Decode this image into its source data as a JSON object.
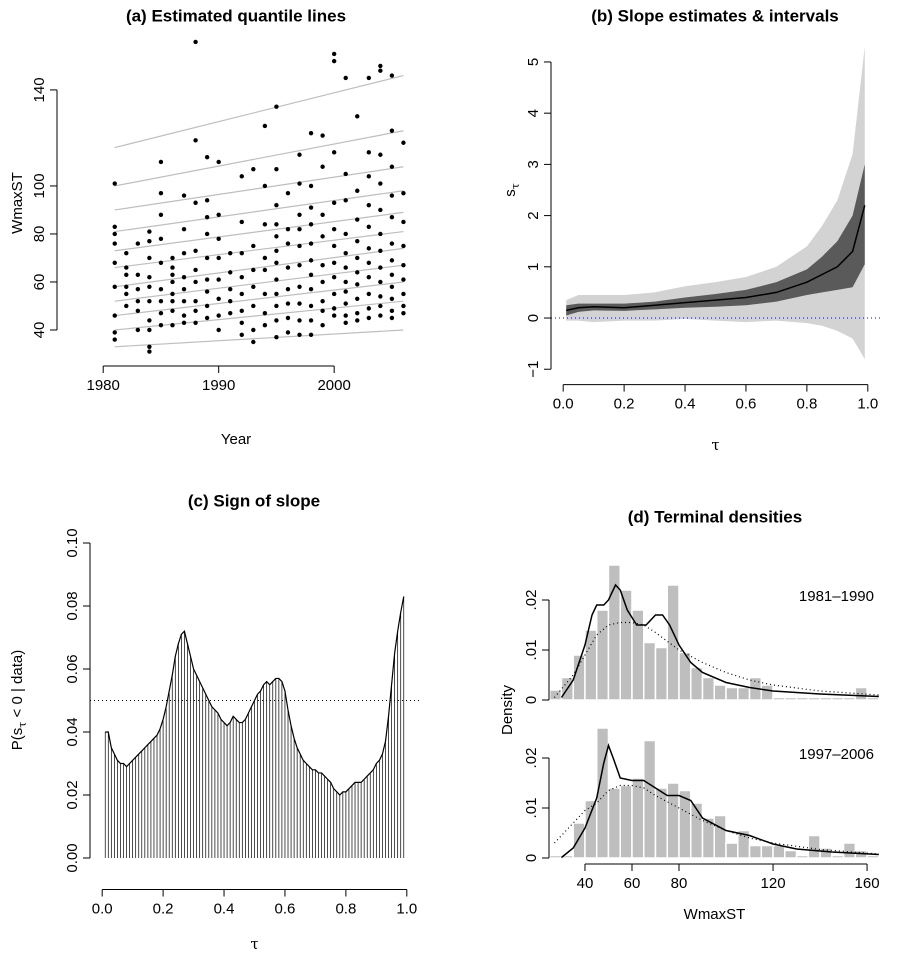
{
  "chart_data": [
    {
      "type": "scatter",
      "title": "(a) Estimated quantile lines",
      "x_label": "Year",
      "y_label": "WmaxST",
      "xlim": [
        1976,
        2007
      ],
      "ylim": [
        25,
        160.8
      ],
      "xticks": [
        1980,
        1990,
        2000
      ],
      "yticks": [
        40,
        60,
        80,
        100,
        140
      ],
      "color": "#000000",
      "groups": [
        {
          "x": 1981,
          "values": [
            36,
            39,
            46,
            58,
            68,
            76,
            80,
            83,
            101
          ]
        },
        {
          "x": 1982,
          "values": [
            50,
            55,
            58,
            63,
            66,
            72
          ]
        },
        {
          "x": 1983,
          "values": [
            40,
            48,
            52,
            57,
            63,
            76
          ]
        },
        {
          "x": 1984,
          "values": [
            31,
            33,
            40,
            44,
            52,
            58,
            62,
            70,
            77,
            81
          ]
        },
        {
          "x": 1985,
          "values": [
            42,
            47,
            52,
            57,
            68,
            78,
            88,
            97,
            110
          ]
        },
        {
          "x": 1986,
          "values": [
            42,
            48,
            52,
            55,
            60,
            63,
            66,
            70
          ]
        },
        {
          "x": 1987,
          "values": [
            43,
            46,
            52,
            57,
            62,
            72,
            82,
            96
          ]
        },
        {
          "x": 1988,
          "values": [
            43,
            48,
            52,
            60,
            65,
            73,
            93,
            119,
            160
          ]
        },
        {
          "x": 1989,
          "values": [
            45,
            50,
            56,
            61,
            70,
            80,
            87,
            94,
            112
          ]
        },
        {
          "x": 1990,
          "values": [
            40,
            46,
            53,
            61,
            70,
            78,
            88,
            110
          ]
        },
        {
          "x": 1991,
          "values": [
            47,
            52,
            57,
            64,
            72
          ]
        },
        {
          "x": 1992,
          "values": [
            38,
            43,
            48,
            55,
            62,
            72,
            85,
            104
          ]
        },
        {
          "x": 1993,
          "values": [
            35,
            40,
            50,
            58,
            65,
            75,
            107
          ]
        },
        {
          "x": 1994,
          "values": [
            42,
            47,
            55,
            65,
            70,
            84,
            100,
            125
          ]
        },
        {
          "x": 1995,
          "values": [
            37,
            44,
            50,
            55,
            61,
            68,
            73,
            79,
            84,
            92,
            107,
            133
          ]
        },
        {
          "x": 1996,
          "values": [
            39,
            45,
            51,
            57,
            66,
            76,
            82,
            97
          ]
        },
        {
          "x": 1997,
          "values": [
            38,
            44,
            51,
            58,
            67,
            75,
            82,
            88,
            101,
            113
          ]
        },
        {
          "x": 1998,
          "values": [
            38,
            44,
            50,
            57,
            63,
            69,
            76,
            84,
            91,
            100,
            122
          ]
        },
        {
          "x": 1999,
          "values": [
            42,
            48,
            52,
            60,
            67,
            79,
            88,
            108,
            121
          ]
        },
        {
          "x": 2000,
          "values": [
            46,
            49,
            55,
            62,
            68,
            75,
            82,
            93,
            114,
            152,
            155
          ]
        },
        {
          "x": 2001,
          "values": [
            43,
            46,
            51,
            56,
            60,
            66,
            72,
            80,
            94,
            105,
            145
          ]
        },
        {
          "x": 2002,
          "values": [
            44,
            47,
            53,
            59,
            64,
            70,
            77,
            86,
            98,
            129
          ]
        },
        {
          "x": 2003,
          "values": [
            45,
            49,
            55,
            62,
            68,
            74,
            83,
            92,
            104,
            114,
            145
          ]
        },
        {
          "x": 2004,
          "values": [
            46,
            50,
            54,
            60,
            66,
            73,
            80,
            90,
            101,
            113,
            148,
            150
          ]
        },
        {
          "x": 2005,
          "values": [
            45,
            48,
            53,
            58,
            63,
            69,
            76,
            87,
            96,
            108,
            123,
            146
          ]
        },
        {
          "x": 2006,
          "values": [
            47,
            50,
            55,
            61,
            67,
            75,
            85,
            97,
            118
          ]
        }
      ],
      "quantile_lines": {
        "x": [
          1981,
          2006
        ],
        "color": "#bebebe",
        "series": [
          {
            "values": [
              33,
              40
            ]
          },
          {
            "values": [
              40,
              52
            ]
          },
          {
            "values": [
              46,
              60
            ]
          },
          {
            "values": [
              52,
              67
            ]
          },
          {
            "values": [
              58,
              74
            ]
          },
          {
            "values": [
              66,
              81
            ]
          },
          {
            "values": [
              73,
              89
            ]
          },
          {
            "values": [
              81,
              98
            ]
          },
          {
            "values": [
              90,
              108
            ]
          },
          {
            "values": [
              100,
              123
            ]
          },
          {
            "values": [
              116,
              146
            ]
          }
        ]
      }
    },
    {
      "type": "band",
      "title": "(b) Slope estimates & intervals",
      "x_label": "τ",
      "y_label": [
        "s",
        "τ"
      ],
      "xlim": [
        -0.04,
        1.04
      ],
      "ylim": [
        -1.3,
        5.3
      ],
      "xticks": [
        {
          "value": 0,
          "label": "0.0"
        },
        0.2,
        0.4,
        0.6,
        0.8,
        {
          "value": 1,
          "label": "1.0"
        }
      ],
      "yticks": [
        {
          "value": -1,
          "label": "−1"
        },
        0,
        1,
        2,
        3,
        4,
        5
      ],
      "x": [
        0.01,
        0.05,
        0.1,
        0.2,
        0.3,
        0.4,
        0.5,
        0.6,
        0.7,
        0.8,
        0.85,
        0.9,
        0.95,
        0.99
      ],
      "bands": [
        {
          "color": "#d3d3d3",
          "lower": [
            -0.05,
            -0.05,
            -0.08,
            -0.05,
            -0.05,
            -0.02,
            -0.05,
            -0.08,
            -0.05,
            -0.1,
            -0.15,
            -0.25,
            -0.4,
            -0.8
          ],
          "upper": [
            0.35,
            0.45,
            0.45,
            0.45,
            0.5,
            0.62,
            0.7,
            0.8,
            1.0,
            1.4,
            1.8,
            2.3,
            3.2,
            5.3
          ]
        },
        {
          "color": "#5a5a5a",
          "lower": [
            0.05,
            0.12,
            0.15,
            0.14,
            0.17,
            0.2,
            0.22,
            0.25,
            0.32,
            0.45,
            0.5,
            0.55,
            0.6,
            1.05
          ],
          "upper": [
            0.25,
            0.28,
            0.28,
            0.28,
            0.32,
            0.4,
            0.47,
            0.55,
            0.7,
            0.95,
            1.2,
            1.5,
            2.0,
            3.0
          ]
        }
      ],
      "line": {
        "color": "#000000",
        "values": [
          0.15,
          0.2,
          0.22,
          0.2,
          0.25,
          0.3,
          0.35,
          0.4,
          0.5,
          0.7,
          0.85,
          1.0,
          1.3,
          2.2
        ]
      },
      "reference_line": {
        "value": 0,
        "color": "#0000ff"
      }
    },
    {
      "type": "spikes",
      "title": "(c) Sign of slope",
      "x_label": "τ",
      "y_label": [
        "P(s",
        "τ",
        " < 0 | data)"
      ],
      "xlim": [
        -0.04,
        1.04
      ],
      "ylim": [
        -0.01,
        0.104
      ],
      "xticks": [
        {
          "value": 0,
          "label": "0.0"
        },
        0.2,
        0.4,
        0.6,
        0.8,
        {
          "value": 1,
          "label": "1.0"
        }
      ],
      "yticks": [
        {
          "value": 0,
          "label": "0.00"
        },
        0.02,
        0.04,
        0.06,
        0.08,
        {
          "value": 0.1,
          "label": "0.10"
        }
      ],
      "x": [
        0.01,
        0.02,
        0.03,
        0.04,
        0.05,
        0.06,
        0.07,
        0.08,
        0.09,
        0.1,
        0.11,
        0.12,
        0.13,
        0.14,
        0.15,
        0.16,
        0.17,
        0.18,
        0.19,
        0.2,
        0.21,
        0.22,
        0.23,
        0.24,
        0.25,
        0.26,
        0.27,
        0.28,
        0.29,
        0.3,
        0.31,
        0.32,
        0.33,
        0.34,
        0.35,
        0.36,
        0.37,
        0.38,
        0.39,
        0.4,
        0.41,
        0.42,
        0.43,
        0.44,
        0.45,
        0.46,
        0.47,
        0.48,
        0.49,
        0.5,
        0.51,
        0.52,
        0.53,
        0.54,
        0.55,
        0.56,
        0.57,
        0.58,
        0.59,
        0.6,
        0.61,
        0.62,
        0.63,
        0.64,
        0.65,
        0.66,
        0.67,
        0.68,
        0.69,
        0.7,
        0.71,
        0.72,
        0.73,
        0.74,
        0.75,
        0.76,
        0.77,
        0.78,
        0.79,
        0.8,
        0.81,
        0.82,
        0.83,
        0.84,
        0.85,
        0.86,
        0.87,
        0.88,
        0.89,
        0.9,
        0.91,
        0.92,
        0.93,
        0.94,
        0.95,
        0.96,
        0.97,
        0.98,
        0.99
      ],
      "values": [
        0.04,
        0.04,
        0.035,
        0.033,
        0.031,
        0.03,
        0.03,
        0.029,
        0.03,
        0.031,
        0.032,
        0.033,
        0.034,
        0.035,
        0.036,
        0.037,
        0.038,
        0.039,
        0.041,
        0.044,
        0.048,
        0.053,
        0.058,
        0.064,
        0.068,
        0.071,
        0.072,
        0.068,
        0.064,
        0.06,
        0.058,
        0.056,
        0.054,
        0.052,
        0.05,
        0.048,
        0.047,
        0.046,
        0.044,
        0.043,
        0.042,
        0.043,
        0.045,
        0.044,
        0.043,
        0.043,
        0.044,
        0.046,
        0.048,
        0.05,
        0.052,
        0.053,
        0.055,
        0.056,
        0.055,
        0.056,
        0.057,
        0.057,
        0.056,
        0.053,
        0.047,
        0.042,
        0.038,
        0.035,
        0.033,
        0.031,
        0.03,
        0.029,
        0.028,
        0.028,
        0.027,
        0.027,
        0.026,
        0.025,
        0.024,
        0.022,
        0.021,
        0.02,
        0.021,
        0.021,
        0.022,
        0.023,
        0.024,
        0.024,
        0.024,
        0.025,
        0.026,
        0.027,
        0.028,
        0.03,
        0.031,
        0.033,
        0.037,
        0.045,
        0.055,
        0.065,
        0.072,
        0.078,
        0.083
      ],
      "color": "#000000",
      "reference_line": {
        "value": 0.05
      }
    },
    {
      "type": "histogram",
      "title": "(d) Terminal densities",
      "x_label": "WmaxST",
      "y_label": "Density",
      "xlim": [
        24.7,
        165.5
      ],
      "ylim": [
        -0.0012,
        0.029
      ],
      "xticks": [
        40,
        60,
        80,
        120,
        160
      ],
      "yticks": [
        0,
        {
          "value": 0.01,
          "label": ".01"
        },
        {
          "value": 0.02,
          "label": ".02"
        }
      ],
      "bins": [
        25,
        30,
        35,
        40,
        45,
        50,
        55,
        60,
        65,
        70,
        75,
        80,
        85,
        90,
        95,
        100,
        105,
        110,
        115,
        120,
        125,
        130,
        135,
        140,
        145,
        150,
        155,
        160,
        165
      ],
      "color": "#bebebe",
      "panels": [
        {
          "label": "1981–1990",
          "values": [
            0.002,
            0.0045,
            0.009,
            0.014,
            0.018,
            0.027,
            0.022,
            0.018,
            0.0115,
            0.0105,
            0.023,
            0.0095,
            0.0065,
            0.0045,
            0.003,
            0.0025,
            0.0025,
            0.0045,
            0.003,
            0.0005,
            0.0005,
            0.0005,
            0.0005,
            0.0005,
            0.0005,
            0.0005,
            0.0025,
            0.0005
          ],
          "curves": [
            {
              "style": "solid",
              "x": [
                30,
                35,
                40,
                43,
                45,
                48,
                50,
                53,
                55,
                58,
                62,
                66,
                70,
                73,
                76,
                80,
                85,
                90,
                100,
                110,
                120,
                140,
                160,
                165
              ],
              "values": [
                0.0005,
                0.004,
                0.011,
                0.017,
                0.019,
                0.019,
                0.02,
                0.023,
                0.022,
                0.018,
                0.015,
                0.015,
                0.017,
                0.017,
                0.015,
                0.011,
                0.0075,
                0.0055,
                0.0035,
                0.0025,
                0.0018,
                0.0012,
                0.0008,
                0.0007
              ]
            },
            {
              "style": "dotted",
              "x": [
                27,
                35,
                40,
                45,
                50,
                55,
                60,
                65,
                70,
                80,
                90,
                100,
                110,
                120,
                140,
                165
              ],
              "values": [
                0.0005,
                0.005,
                0.009,
                0.013,
                0.015,
                0.0155,
                0.0155,
                0.015,
                0.0135,
                0.01,
                0.0075,
                0.0055,
                0.004,
                0.003,
                0.0018,
                0.001
              ]
            }
          ]
        },
        {
          "label": "1997–2006",
          "values": [
            0.0005,
            0.0005,
            0.007,
            0.0115,
            0.026,
            0.014,
            0.0145,
            0.016,
            0.0235,
            0.014,
            0.015,
            0.0135,
            0.011,
            0.008,
            0.0085,
            0.003,
            0.0055,
            0.0025,
            0.0025,
            0.0025,
            0.0015,
            0.0005,
            0.0045,
            0.002,
            0.0005,
            0.003,
            0.0015,
            0.0005
          ],
          "curves": [
            {
              "style": "solid",
              "x": [
                30,
                35,
                40,
                45,
                48,
                50,
                52,
                55,
                60,
                65,
                70,
                75,
                80,
                85,
                90,
                100,
                110,
                120,
                130,
                145,
                165
              ],
              "values": [
                0.0001,
                0.002,
                0.006,
                0.012,
                0.019,
                0.0225,
                0.02,
                0.016,
                0.0155,
                0.0155,
                0.014,
                0.0125,
                0.0125,
                0.0115,
                0.008,
                0.0055,
                0.0045,
                0.0028,
                0.0018,
                0.0012,
                0.0007
              ]
            },
            {
              "style": "dotted",
              "x": [
                27,
                35,
                40,
                45,
                50,
                55,
                60,
                65,
                70,
                80,
                90,
                100,
                110,
                120,
                140,
                165
              ],
              "values": [
                0.003,
                0.007,
                0.0095,
                0.011,
                0.0135,
                0.0145,
                0.0145,
                0.014,
                0.0125,
                0.01,
                0.0075,
                0.0055,
                0.004,
                0.003,
                0.0017,
                0.0008
              ]
            }
          ]
        }
      ]
    }
  ]
}
